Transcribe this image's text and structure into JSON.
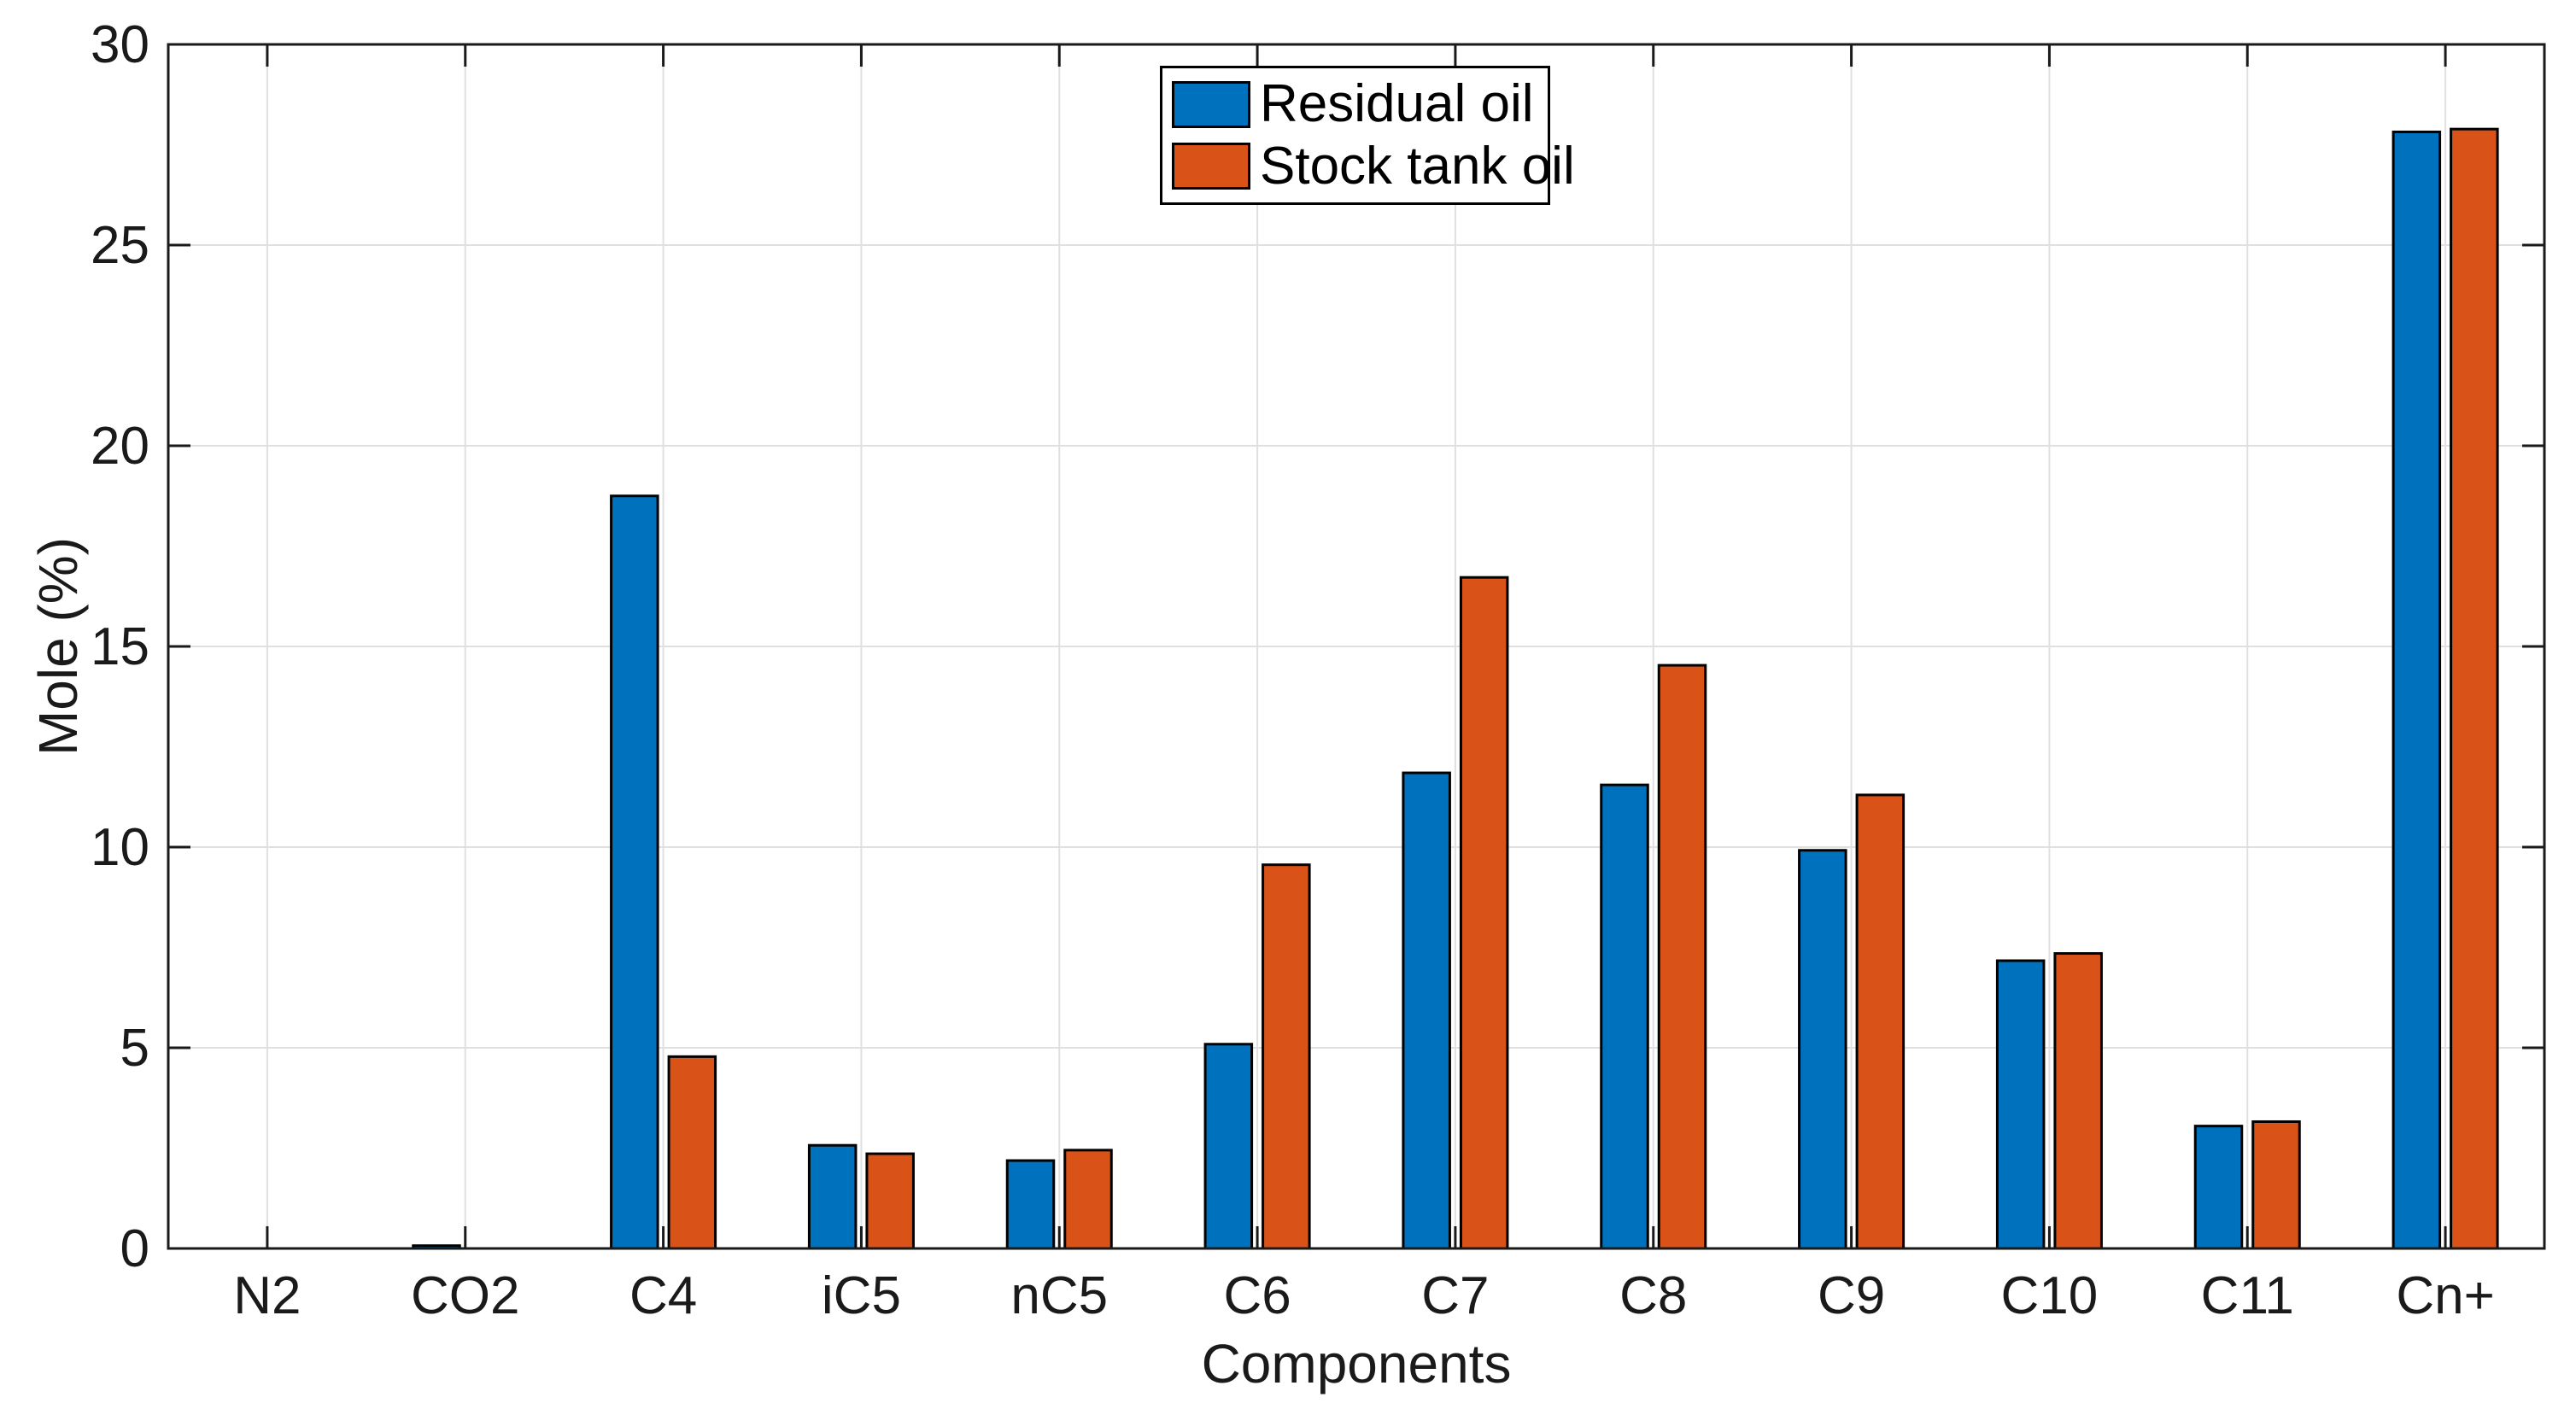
{
  "chart_data": {
    "type": "bar",
    "title": "",
    "xlabel": "Components",
    "ylabel": "Mole (%)",
    "categories": [
      "N2",
      "CO2",
      "C4",
      "iC5",
      "nC5",
      "C6",
      "C7",
      "C8",
      "C9",
      "C10",
      "C11",
      "Cn+"
    ],
    "series": [
      {
        "name": "Residual oil",
        "color": "#0072BD",
        "values": [
          0.0,
          0.07,
          18.75,
          2.57,
          2.19,
          5.09,
          11.85,
          11.55,
          9.92,
          7.17,
          3.05,
          27.82
        ]
      },
      {
        "name": "Stock tank oil",
        "color": "#D95319",
        "values": [
          0.0,
          0.01,
          4.78,
          2.36,
          2.45,
          9.56,
          16.72,
          14.53,
          11.3,
          7.35,
          3.16,
          27.89
        ]
      }
    ],
    "ylim": [
      0,
      30
    ],
    "yticks": [
      0,
      5,
      10,
      15,
      20,
      25,
      30
    ],
    "grid": true,
    "legend_position": "north",
    "colors": {
      "grid": "#e0e0e0",
      "axis": "#1a1a1a",
      "bar_edge": "#000000",
      "background": "#ffffff"
    }
  }
}
